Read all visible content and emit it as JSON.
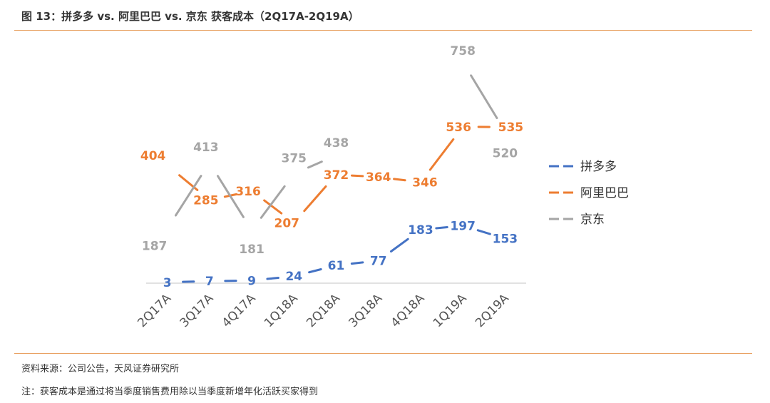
{
  "title": "图 13：拼多多 vs. 阿里巴巴 vs. 京东 获客成本（2Q17A-2Q19A）",
  "source": "资料来源：公司公告，天风证券研究所",
  "note": "注：获客成本是通过将当季度销售费用除以当季度新增年化活跃买家得到",
  "chart_data": {
    "type": "line",
    "categories": [
      "2Q17A",
      "3Q17A",
      "4Q17A",
      "1Q18A",
      "2Q18A",
      "3Q18A",
      "4Q18A",
      "1Q19A",
      "2Q19A"
    ],
    "series": [
      {
        "name": "拼多多",
        "color": "#4472C4",
        "values": [
          3,
          7,
          9,
          24,
          61,
          77,
          183,
          197,
          153
        ]
      },
      {
        "name": "阿里巴巴",
        "color": "#ED7D31",
        "values": [
          404,
          285,
          316,
          207,
          372,
          364,
          346,
          536,
          535
        ]
      },
      {
        "name": "京东",
        "color": "#A5A5A5",
        "values": [
          187,
          413,
          181,
          375,
          438,
          null,
          null,
          758,
          520
        ]
      }
    ],
    "title": "",
    "xlabel": "",
    "ylabel": "",
    "legend_position": "right",
    "grid": false
  }
}
